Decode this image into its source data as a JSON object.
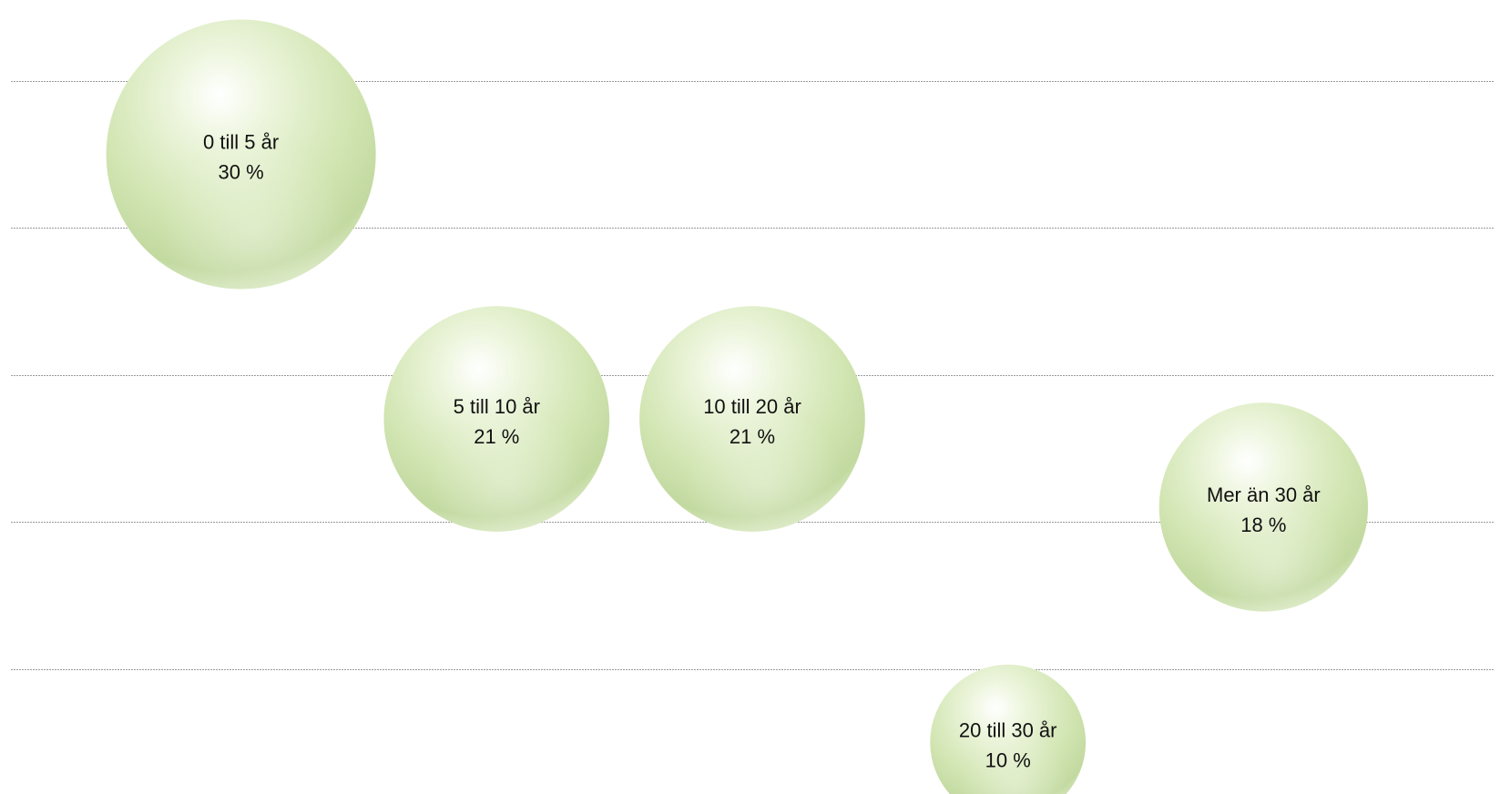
{
  "chart_data": {
    "type": "bubble",
    "title": "",
    "xlabel": "",
    "ylabel": "",
    "grid": true,
    "legend": "none",
    "colors": {
      "bubble_fill": "#d6e8b9",
      "bubble_highlight": "#ffffff",
      "bubble_shade": "#b9d39a",
      "gridline": "#9a9a9a",
      "label_text": "#111111"
    },
    "points": [
      {
        "label": "0 till 5 år",
        "value_text": "30 %",
        "x": 1.0,
        "y": 4.5,
        "value": 30
      },
      {
        "label": "5 till 10 år",
        "value_text": "21 %",
        "x": 2.0,
        "y": 2.7,
        "value": 21
      },
      {
        "label": "10 till 20 år",
        "value_text": "21 %",
        "x": 3.0,
        "y": 2.7,
        "value": 21
      },
      {
        "label": "Mer än 30 år",
        "value_text": "18 %",
        "x": 5.0,
        "y": 2.1,
        "value": 18
      },
      {
        "label": "20 till 30 år",
        "value_text": "10 %",
        "x": 4.0,
        "y": 0.5,
        "value": 10
      }
    ],
    "xlim": [
      0.1,
      5.9
    ],
    "ylim": [
      0,
      5.5
    ],
    "yticks": [
      0,
      1,
      2,
      3,
      4,
      5
    ]
  }
}
